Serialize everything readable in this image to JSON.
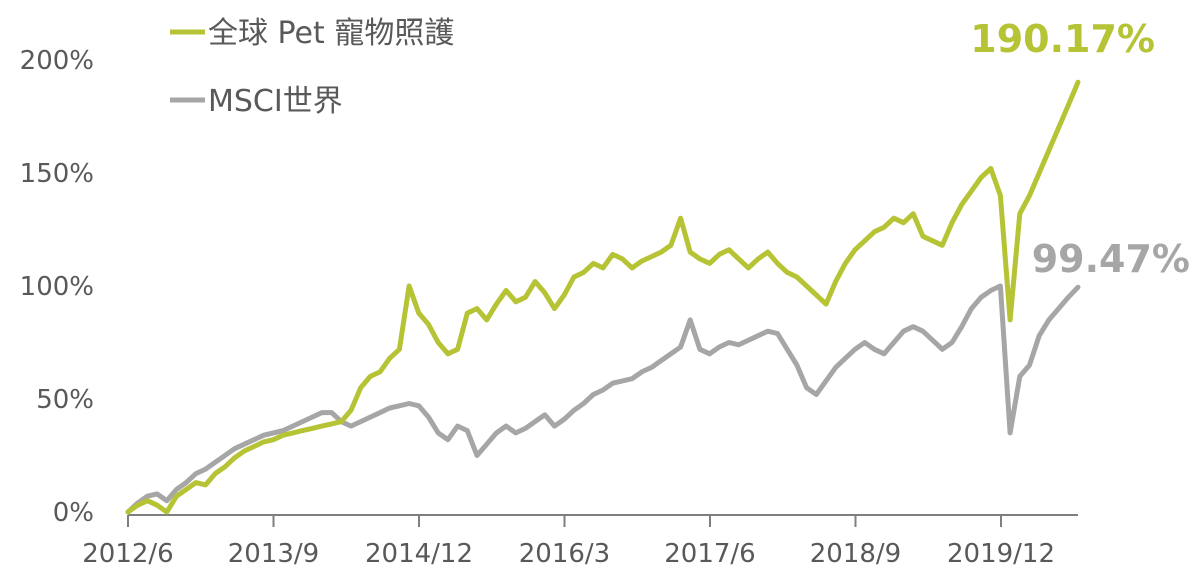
{
  "chart_data": {
    "type": "line",
    "title": "",
    "xlabel": "",
    "ylabel": "",
    "ylim": [
      0,
      200
    ],
    "y_ticks": [
      "0%",
      "50%",
      "100%",
      "150%",
      "200%"
    ],
    "y_tick_values": [
      0,
      50,
      100,
      150,
      200
    ],
    "x_ticks": [
      "2012/6",
      "2013/9",
      "2014/12",
      "2016/3",
      "2017/6",
      "2018/9",
      "2019/12"
    ],
    "xlim": [
      0,
      98
    ],
    "grid": false,
    "legend_position": "top-left",
    "series": [
      {
        "name": "全球 Pet 寵物照護",
        "color": "#B5C334",
        "end_label": "190.17%",
        "x": [
          0,
          1,
          2,
          3,
          4,
          5,
          6,
          7,
          8,
          9,
          10,
          11,
          12,
          13,
          14,
          15,
          16,
          17,
          18,
          19,
          20,
          21,
          22,
          23,
          24,
          25,
          26,
          27,
          28,
          29,
          30,
          31,
          32,
          33,
          34,
          35,
          36,
          37,
          38,
          39,
          40,
          41,
          42,
          43,
          44,
          45,
          46,
          47,
          48,
          49,
          50,
          51,
          52,
          53,
          54,
          55,
          56,
          57,
          58,
          59,
          60,
          61,
          62,
          63,
          64,
          65,
          66,
          67,
          68,
          69,
          70,
          71,
          72,
          73,
          74,
          75,
          76,
          77,
          78,
          79,
          80,
          81,
          82,
          83,
          84,
          85,
          86,
          87,
          88,
          89,
          90,
          91,
          92,
          93,
          94,
          95,
          96,
          97,
          98
        ],
        "y": [
          0,
          3,
          5,
          3,
          0,
          7,
          10,
          13,
          12,
          17,
          20,
          24,
          27,
          29,
          31,
          32,
          34,
          35,
          36,
          37,
          38,
          39,
          40,
          45,
          55,
          60,
          62,
          68,
          72,
          100,
          88,
          83,
          75,
          70,
          72,
          88,
          90,
          85,
          92,
          98,
          93,
          95,
          102,
          97,
          90,
          96,
          104,
          106,
          110,
          108,
          114,
          112,
          108,
          111,
          113,
          115,
          118,
          130,
          115,
          112,
          110,
          114,
          116,
          112,
          108,
          112,
          115,
          110,
          106,
          104,
          100,
          96,
          92,
          102,
          110,
          116,
          120,
          124,
          126,
          130,
          128,
          132,
          122,
          120,
          118,
          128,
          136,
          142,
          148,
          152,
          140,
          85,
          132,
          140,
          150,
          160,
          170,
          180,
          190.17
        ]
      },
      {
        "name": "MSCI世界",
        "color": "#A6A6A6",
        "end_label": "99.47%",
        "x": [
          0,
          1,
          2,
          3,
          4,
          5,
          6,
          7,
          8,
          9,
          10,
          11,
          12,
          13,
          14,
          15,
          16,
          17,
          18,
          19,
          20,
          21,
          22,
          23,
          24,
          25,
          26,
          27,
          28,
          29,
          30,
          31,
          32,
          33,
          34,
          35,
          36,
          37,
          38,
          39,
          40,
          41,
          42,
          43,
          44,
          45,
          46,
          47,
          48,
          49,
          50,
          51,
          52,
          53,
          54,
          55,
          56,
          57,
          58,
          59,
          60,
          61,
          62,
          63,
          64,
          65,
          66,
          67,
          68,
          69,
          70,
          71,
          72,
          73,
          74,
          75,
          76,
          77,
          78,
          79,
          80,
          81,
          82,
          83,
          84,
          85,
          86,
          87,
          88,
          89,
          90,
          91,
          92,
          93,
          94,
          95,
          96,
          97,
          98
        ],
        "y": [
          0,
          4,
          7,
          8,
          5,
          10,
          13,
          17,
          19,
          22,
          25,
          28,
          30,
          32,
          34,
          35,
          36,
          38,
          40,
          42,
          44,
          44,
          40,
          38,
          40,
          42,
          44,
          46,
          47,
          48,
          47,
          42,
          35,
          32,
          38,
          36,
          25,
          30,
          35,
          38,
          35,
          37,
          40,
          43,
          38,
          41,
          45,
          48,
          52,
          54,
          57,
          58,
          59,
          62,
          64,
          67,
          70,
          73,
          85,
          72,
          70,
          73,
          75,
          74,
          76,
          78,
          80,
          79,
          72,
          65,
          55,
          52,
          58,
          64,
          68,
          72,
          75,
          72,
          70,
          75,
          80,
          82,
          80,
          76,
          72,
          75,
          82,
          90,
          95,
          98,
          100,
          35,
          60,
          65,
          78,
          85,
          90,
          95,
          99.47
        ]
      }
    ]
  }
}
